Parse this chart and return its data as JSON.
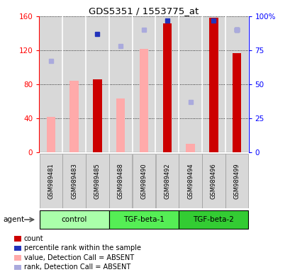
{
  "title": "GDS5351 / 1553775_at",
  "samples": [
    "GSM989481",
    "GSM989483",
    "GSM989485",
    "GSM989488",
    "GSM989490",
    "GSM989492",
    "GSM989494",
    "GSM989496",
    "GSM989499"
  ],
  "groups": [
    {
      "label": "control",
      "span": [
        0,
        3
      ],
      "color": "#aaffaa"
    },
    {
      "label": "TGF-beta-1",
      "span": [
        3,
        6
      ],
      "color": "#55ee55"
    },
    {
      "label": "TGF-beta-2",
      "span": [
        6,
        9
      ],
      "color": "#33cc33"
    }
  ],
  "red_bars": [
    null,
    null,
    86,
    null,
    null,
    152,
    null,
    158,
    117
  ],
  "blue_squares": [
    null,
    null,
    87,
    null,
    null,
    97,
    null,
    97,
    90
  ],
  "pink_bars": [
    42,
    84,
    null,
    63,
    122,
    null,
    10,
    null,
    null
  ],
  "lavender_squares": [
    67,
    null,
    null,
    78,
    90,
    null,
    37,
    null,
    90
  ],
  "ylim": [
    0,
    160
  ],
  "y2lim": [
    0,
    100
  ],
  "yticks": [
    0,
    40,
    80,
    120,
    160
  ],
  "y2ticks": [
    0,
    25,
    50,
    75,
    100
  ],
  "y2labels": [
    "0",
    "25",
    "50",
    "75",
    "100%"
  ],
  "red_color": "#cc0000",
  "blue_color": "#2233bb",
  "pink_color": "#ffaaaa",
  "lavender_color": "#aaaadd",
  "legend_items": [
    {
      "color": "#cc0000",
      "label": "count"
    },
    {
      "color": "#2233bb",
      "label": "percentile rank within the sample"
    },
    {
      "color": "#ffaaaa",
      "label": "value, Detection Call = ABSENT"
    },
    {
      "color": "#aaaadd",
      "label": "rank, Detection Call = ABSENT"
    }
  ],
  "col_bg": "#d8d8d8",
  "group_light_green": "#bbffbb",
  "group_mid_green": "#55ee55",
  "group_dark_green": "#33cc33"
}
